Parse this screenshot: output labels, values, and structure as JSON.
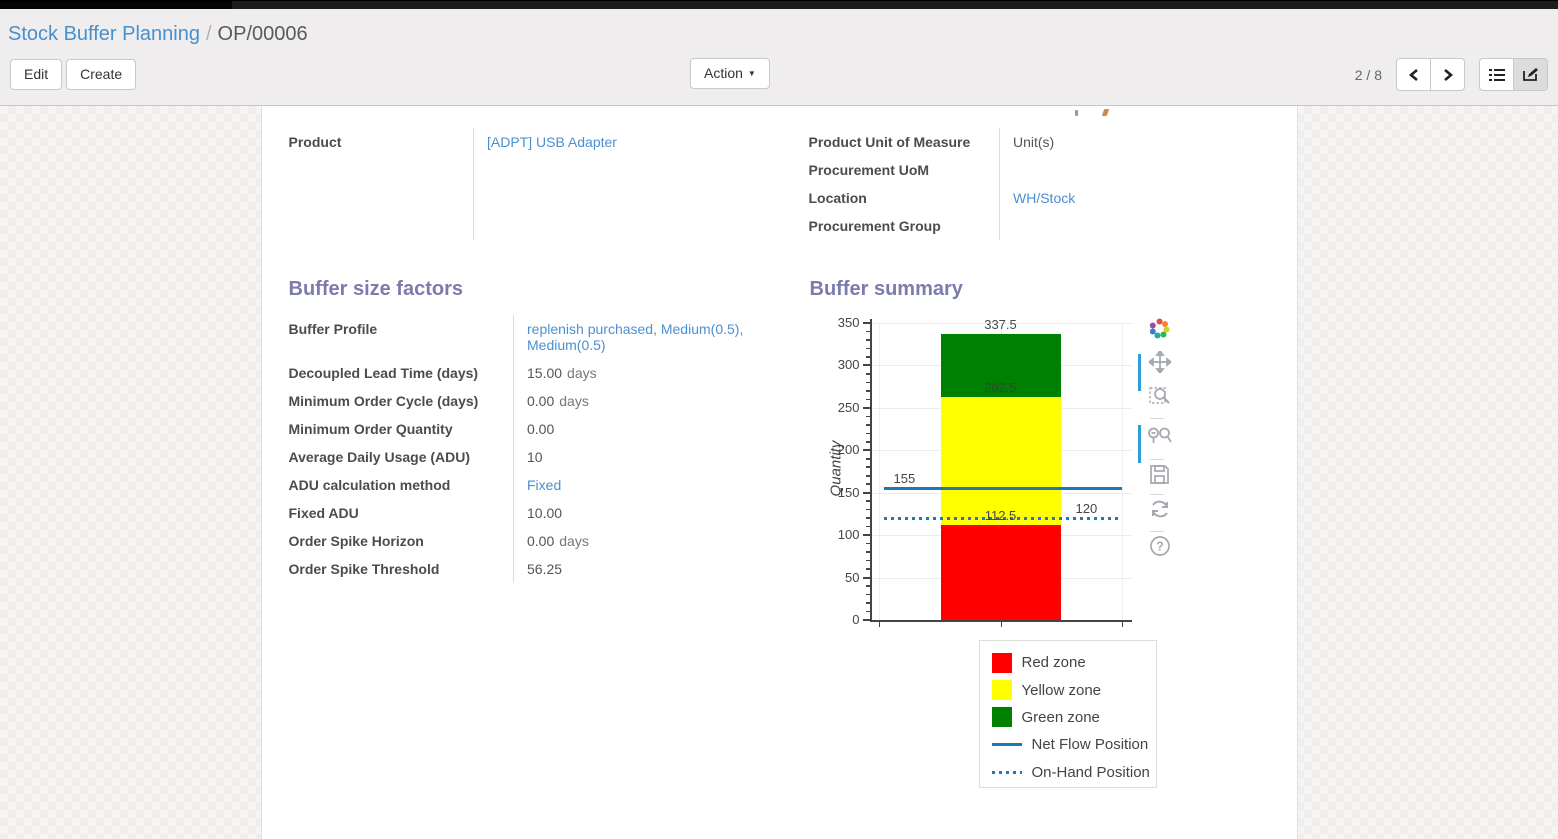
{
  "breadcrumb": {
    "parent": "Stock Buffer Planning",
    "separator": "/",
    "current": "OP/00006"
  },
  "control_panel": {
    "edit_label": "Edit",
    "create_label": "Create",
    "action_label": "Action",
    "pager_count": "2 / 8",
    "view_switcher": [
      "list",
      "form"
    ],
    "active_view": "form"
  },
  "form": {
    "top_left": {
      "product": {
        "label": "Product",
        "value": "[ADPT] USB Adapter"
      }
    },
    "top_right": {
      "uom": {
        "label": "Product Unit of Measure",
        "value": "Unit(s)"
      },
      "proc_uom": {
        "label": "Procurement UoM",
        "value": ""
      },
      "location": {
        "label": "Location",
        "value": "WH/Stock"
      },
      "proc_group": {
        "label": "Procurement Group",
        "value": ""
      }
    },
    "buffer_factors": {
      "title": "Buffer size factors",
      "buffer_profile": {
        "label": "Buffer Profile",
        "value": "replenish purchased, Medium(0.5), Medium(0.5)"
      },
      "dlt": {
        "label": "Decoupled Lead Time (days)",
        "value": "15.00",
        "unit": "days"
      },
      "moc": {
        "label": "Minimum Order Cycle (days)",
        "value": "0.00",
        "unit": "days"
      },
      "moq": {
        "label": "Minimum Order Quantity",
        "value": "0.00"
      },
      "adu": {
        "label": "Average Daily Usage (ADU)",
        "value": "10"
      },
      "adu_method": {
        "label": "ADU calculation method",
        "value": "Fixed"
      },
      "fixed_adu": {
        "label": "Fixed ADU",
        "value": "10.00"
      },
      "spike_horizon": {
        "label": "Order Spike Horizon",
        "value": "0.00",
        "unit": "days"
      },
      "spike_threshold": {
        "label": "Order Spike Threshold",
        "value": "56.25"
      }
    },
    "buffer_summary": {
      "title": "Buffer summary"
    }
  },
  "chart_data": {
    "type": "bar",
    "title": "Buffer summary",
    "xlabel": "",
    "ylabel": "Quantity",
    "ylim": [
      0,
      350
    ],
    "ytick_step": 50,
    "ytick_minor": 10,
    "grid": true,
    "legend_position": "bottom-right",
    "zones": [
      {
        "name": "Red zone",
        "color": "#ff0000",
        "from": 0,
        "to": 112.5,
        "top_label": "112.5"
      },
      {
        "name": "Yellow zone",
        "color": "#ffff00",
        "from": 112.5,
        "to": 262.5,
        "top_label": "262.5"
      },
      {
        "name": "Green zone",
        "color": "#008000",
        "from": 262.5,
        "to": 337.5,
        "top_label": "337.5"
      }
    ],
    "lines": [
      {
        "name": "Net Flow Position",
        "value": 155,
        "style": "solid",
        "color": "#1f77b4",
        "label": "155"
      },
      {
        "name": "On-Hand Position",
        "value": 120,
        "style": "dotted",
        "color": "#1f77b4",
        "label": "120"
      }
    ],
    "legend_items": [
      {
        "label": "Red zone",
        "swatch": "square",
        "color": "#ff0000"
      },
      {
        "label": "Yellow zone",
        "swatch": "square",
        "color": "#ffff00"
      },
      {
        "label": "Green zone",
        "swatch": "square",
        "color": "#008000"
      },
      {
        "label": "Net Flow Position",
        "swatch": "line",
        "color": "#1f77b4"
      },
      {
        "label": "On-Hand Position",
        "swatch": "dotted",
        "color": "#1f77b4"
      }
    ],
    "modebar_icons": [
      "plotly-logo",
      "pan",
      "box-zoom",
      "zoom-in-out",
      "save",
      "reset-axes",
      "help"
    ]
  },
  "colors": {
    "accent_header": "#7c7bad",
    "link": "#4a90d2",
    "line_blue": "#1f77b4",
    "modebar_accent": "#2d9fd8"
  }
}
